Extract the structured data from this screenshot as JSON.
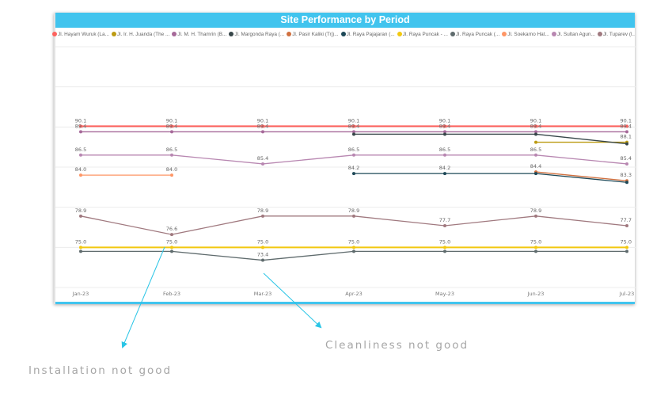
{
  "chart_data": {
    "type": "line",
    "title": "Site Performance by Period",
    "xlabel": "",
    "ylabel": "",
    "ylim": [
      70,
      100
    ],
    "grid": true,
    "legend_position": "top",
    "categories": [
      "Jan-23",
      "Feb-23",
      "Mar-23",
      "Apr-23",
      "May-23",
      "Jun-23",
      "Jul-23"
    ],
    "series": [
      {
        "name": "Jl. Hayam Wuruk (La...",
        "color": "#FD625E",
        "values": [
          90.1,
          90.1,
          90.1,
          90.1,
          90.1,
          90.1,
          90.1
        ],
        "show_labels": true
      },
      {
        "name": "Jl. Ir. H. Juanda (The ...",
        "color": "#BC9B12",
        "values": [
          null,
          null,
          null,
          null,
          null,
          88.1,
          88.1
        ],
        "show_labels": [
          false,
          false,
          false,
          false,
          false,
          false,
          true
        ]
      },
      {
        "name": "Jl. M. H. Thamrin (B...",
        "color": "#A66999",
        "values": [
          89.4,
          89.4,
          89.4,
          89.4,
          89.4,
          89.4,
          89.4
        ],
        "show_labels": true
      },
      {
        "name": "Jl. Margonda Raya (...",
        "color": "#374649",
        "values": [
          null,
          null,
          null,
          89.1,
          89.1,
          89.1,
          87.9
        ],
        "show_labels": false
      },
      {
        "name": "Jl. Pasir Kaliki (Trj)...",
        "color": "#D0703F",
        "values": [
          null,
          null,
          null,
          null,
          null,
          84.4,
          83.3
        ],
        "show_labels": true
      },
      {
        "name": "Jl. Raya Pajajaran (...",
        "color": "#1D4857",
        "values": [
          null,
          null,
          null,
          84.2,
          84.2,
          84.2,
          83.1
        ],
        "show_labels": [
          false,
          false,
          false,
          true,
          true,
          false,
          false
        ]
      },
      {
        "name": "Jl. Raya Puncak - ...",
        "color": "#F2C80F",
        "values": [
          75.0,
          75.0,
          75.0,
          75.0,
          75.0,
          75.0,
          75.0
        ],
        "show_labels": true
      },
      {
        "name": "Jl. Raya Puncak (...",
        "color": "#5F6B6D",
        "values": [
          74.5,
          74.5,
          73.4,
          74.5,
          74.5,
          74.5,
          74.5
        ],
        "show_labels": [
          false,
          false,
          true,
          false,
          false,
          false,
          false
        ]
      },
      {
        "name": "Jl. Soekarno Hat...",
        "color": "#FE9666",
        "values": [
          84.0,
          84.0,
          null,
          null,
          null,
          null,
          null
        ],
        "show_labels": true
      },
      {
        "name": "Jl. Sultan Agun...",
        "color": "#B887B1",
        "values": [
          86.5,
          86.5,
          85.4,
          86.5,
          86.5,
          86.5,
          85.4
        ],
        "show_labels": true
      },
      {
        "name": "Jl. Tuparev (l...",
        "color": "#A0797F",
        "values": [
          78.9,
          76.6,
          78.9,
          78.9,
          77.7,
          78.9,
          77.7
        ],
        "show_labels": true
      }
    ]
  },
  "card": {
    "title": "Site Performance by Period",
    "title_bar_color": "#41C4EE"
  },
  "annotations": {
    "installation": "Installation not good",
    "cleanliness": "Cleanliness not good",
    "arrow_color": "#29C5E6"
  }
}
